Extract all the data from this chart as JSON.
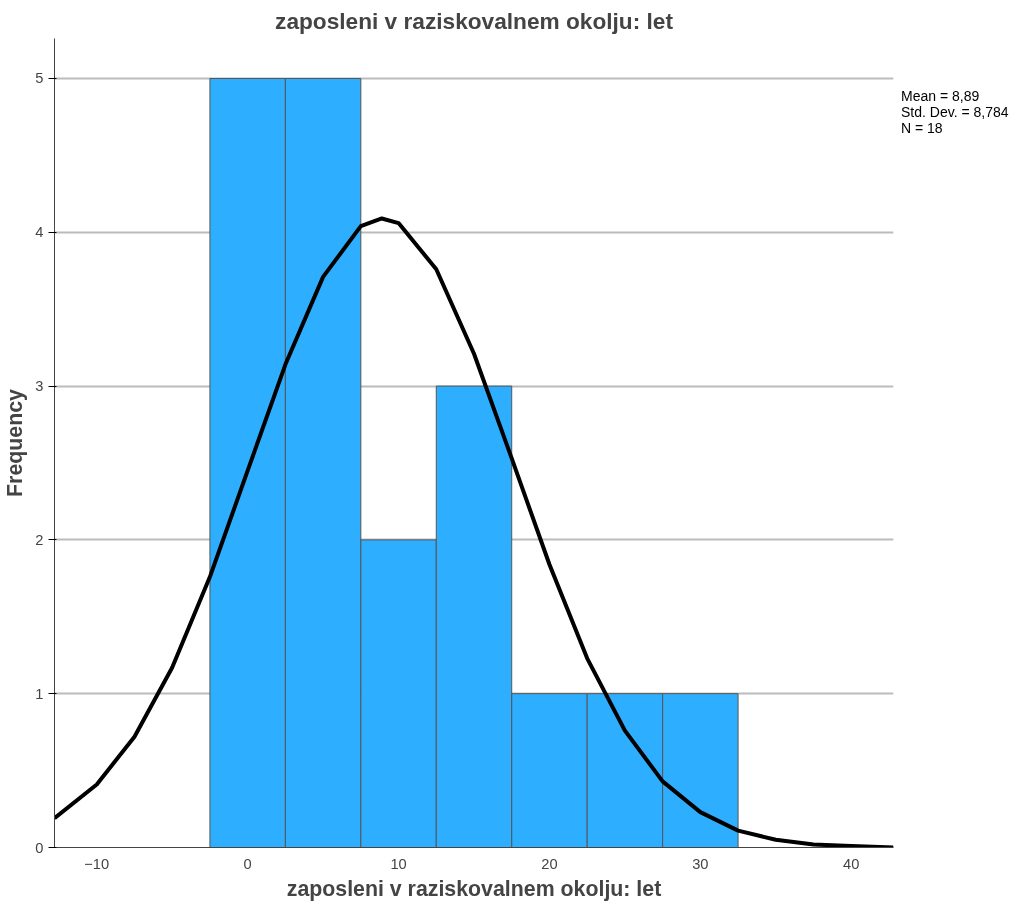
{
  "chart_data": {
    "type": "histogram",
    "title": "zaposleni v raziskovalnem okolju: let",
    "xlabel": "zaposleni v raziskovalnem okolju: let",
    "ylabel": "Frequency",
    "series": [
      {
        "color": "#2eaeff",
        "bins": [
          -2.5,
          2.5,
          7.5,
          12.5,
          17.5,
          22.5,
          27.5,
          32.5
        ],
        "values": [
          5,
          5,
          2,
          3,
          1,
          1,
          1
        ]
      },
      {
        "type": "line",
        "color": "#000000",
        "x": [
          -12.8,
          -10,
          -7.5,
          -5,
          -2.5,
          0,
          2.5,
          5,
          7.5,
          8.89,
          10,
          12.5,
          15,
          17.5,
          20,
          22.5,
          25,
          27.5,
          30,
          32.5,
          35,
          37.5,
          40,
          42.8
        ],
        "values": [
          0.19,
          0.41,
          0.72,
          1.17,
          1.76,
          2.45,
          3.14,
          3.71,
          4.04,
          4.09,
          4.06,
          3.76,
          3.21,
          2.53,
          1.84,
          1.23,
          0.76,
          0.43,
          0.23,
          0.11,
          0.05,
          0.02,
          0.01,
          0.0
        ]
      }
    ],
    "xlim": [
      -12.8,
      42.8
    ],
    "ylim": [
      0,
      5.26
    ],
    "xticks": [
      -10,
      0,
      10,
      20,
      30,
      40
    ],
    "yticks": [
      0,
      1,
      2,
      3,
      4,
      5
    ],
    "grid": "y",
    "annotations": [
      "Mean = 8,89",
      "Std. Dev. = 8,784",
      "N = 18"
    ]
  }
}
